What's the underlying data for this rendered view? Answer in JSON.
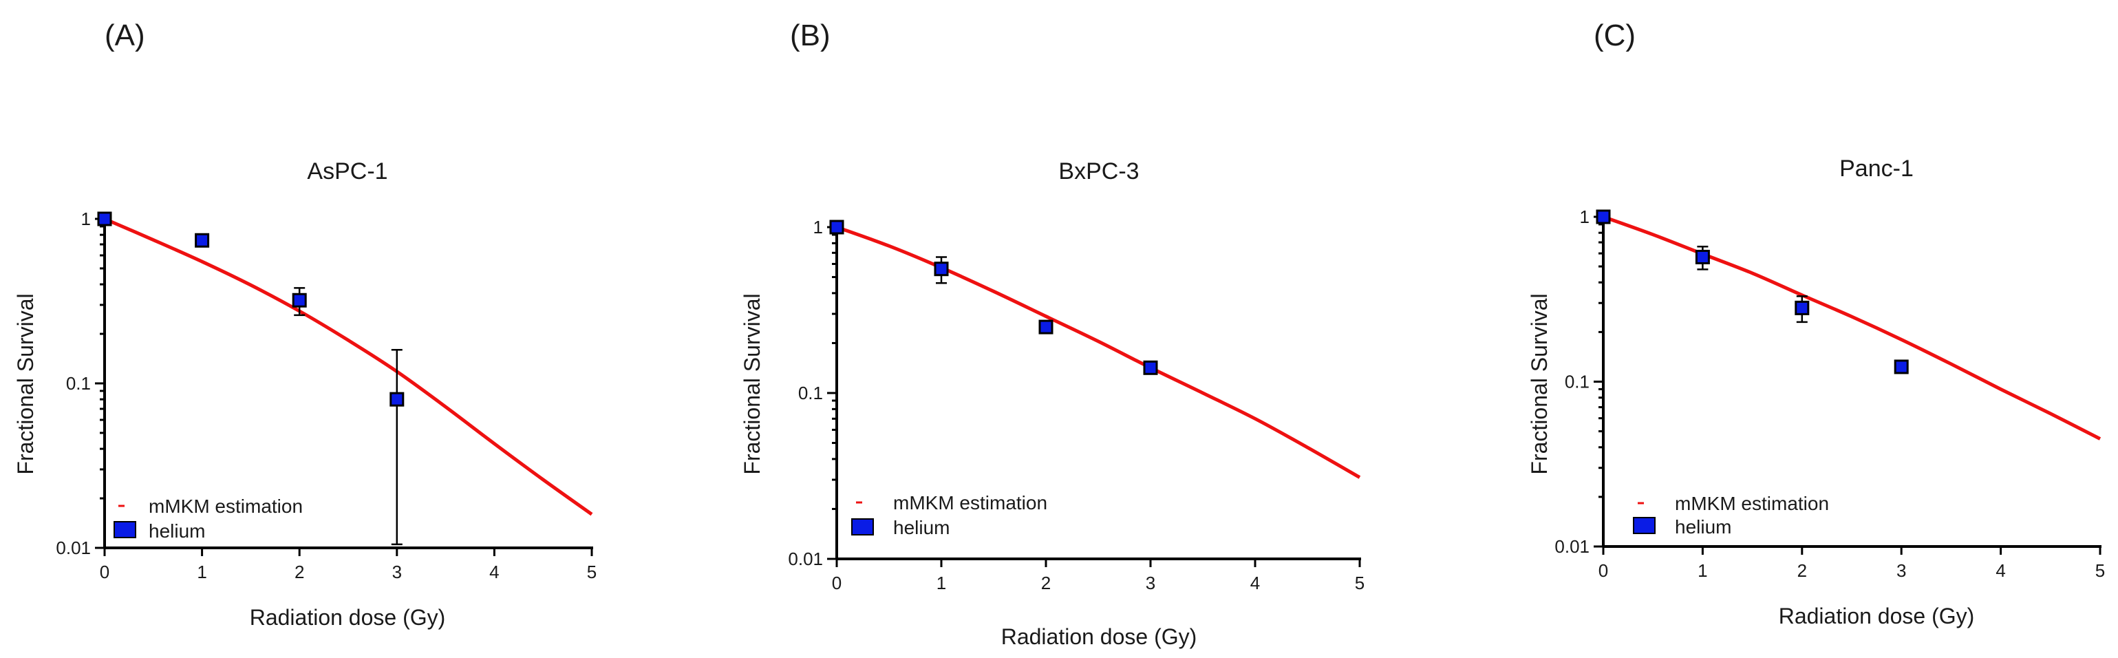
{
  "figure": {
    "panel_labels": [
      "(A)",
      "(B)",
      "(C)"
    ]
  },
  "colors": {
    "model_line": "#ee1111",
    "marker_fill": "#0a1ce6",
    "marker_edge": "#000000",
    "axis": "#000000"
  },
  "chart_data": [
    {
      "type": "scatter",
      "title": "AsPC-1",
      "xlabel": "Radiation dose (Gy)",
      "ylabel": "Fractional Survival",
      "x_scale": "linear",
      "y_scale": "log",
      "xlim": [
        0,
        5
      ],
      "ylim": [
        0.01,
        1
      ],
      "x_ticks": [
        "0",
        "1",
        "2",
        "3",
        "4",
        "5"
      ],
      "y_ticks": [
        "1",
        "0.1",
        "0.01"
      ],
      "legend": [
        "mMKM estimation",
        "helium"
      ],
      "legend_position": "bottom-left",
      "series": [
        {
          "name": "helium",
          "kind": "points",
          "x": [
            0,
            1,
            2,
            3
          ],
          "y": [
            1.0,
            0.74,
            0.32,
            0.08
          ],
          "y_err_low": [
            1.0,
            0.74,
            0.26,
            0.0105
          ],
          "y_err_high": [
            1.0,
            0.74,
            0.38,
            0.16
          ]
        },
        {
          "name": "mMKM estimation",
          "kind": "line",
          "x": [
            0,
            0.5,
            1,
            1.5,
            2,
            2.5,
            3,
            3.5,
            4,
            4.5,
            5
          ],
          "y": [
            1.0,
            0.745,
            0.55,
            0.396,
            0.275,
            0.183,
            0.118,
            0.072,
            0.043,
            0.026,
            0.016
          ]
        }
      ]
    },
    {
      "type": "scatter",
      "title": "BxPC-3",
      "xlabel": "Radiation dose (Gy)",
      "ylabel": "Fractional Survival",
      "x_scale": "linear",
      "y_scale": "log",
      "xlim": [
        0,
        5
      ],
      "ylim": [
        0.01,
        1
      ],
      "x_ticks": [
        "0",
        "1",
        "2",
        "3",
        "4",
        "5"
      ],
      "y_ticks": [
        "1",
        "0.1",
        "0.01"
      ],
      "legend": [
        "mMKM estimation",
        "helium"
      ],
      "legend_position": "bottom-left",
      "series": [
        {
          "name": "helium",
          "kind": "points",
          "x": [
            0,
            1,
            2,
            3
          ],
          "y": [
            1.0,
            0.56,
            0.25,
            0.142
          ],
          "y_err_low": [
            1.0,
            0.46,
            0.23,
            0.132
          ],
          "y_err_high": [
            1.0,
            0.66,
            0.27,
            0.152
          ]
        },
        {
          "name": "mMKM estimation",
          "kind": "line",
          "x": [
            0,
            0.5,
            1,
            1.5,
            2,
            2.5,
            3,
            3.5,
            4,
            4.5,
            5
          ],
          "y": [
            1.0,
            0.77,
            0.57,
            0.41,
            0.29,
            0.205,
            0.142,
            0.1,
            0.07,
            0.047,
            0.031
          ]
        }
      ]
    },
    {
      "type": "scatter",
      "title": "Panc-1",
      "xlabel": "Radiation dose (Gy)",
      "ylabel": "Fractional Survival",
      "x_scale": "linear",
      "y_scale": "log",
      "xlim": [
        0,
        5
      ],
      "ylim": [
        0.01,
        1
      ],
      "x_ticks": [
        "0",
        "1",
        "2",
        "3",
        "4",
        "5"
      ],
      "y_ticks": [
        "1",
        "0.1",
        "0.01"
      ],
      "legend": [
        "mMKM estimation",
        "helium"
      ],
      "legend_position": "bottom-left",
      "series": [
        {
          "name": "helium",
          "kind": "points",
          "x": [
            0,
            1,
            2,
            3
          ],
          "y": [
            1.0,
            0.57,
            0.28,
            0.123
          ],
          "y_err_low": [
            1.0,
            0.48,
            0.23,
            0.115
          ],
          "y_err_high": [
            1.0,
            0.66,
            0.33,
            0.131
          ]
        },
        {
          "name": "mMKM estimation",
          "kind": "line",
          "x": [
            0,
            0.5,
            1,
            1.5,
            2,
            2.5,
            3,
            3.5,
            4,
            4.5,
            5
          ],
          "y": [
            1.0,
            0.78,
            0.595,
            0.455,
            0.335,
            0.248,
            0.18,
            0.128,
            0.09,
            0.064,
            0.045
          ]
        }
      ]
    }
  ]
}
